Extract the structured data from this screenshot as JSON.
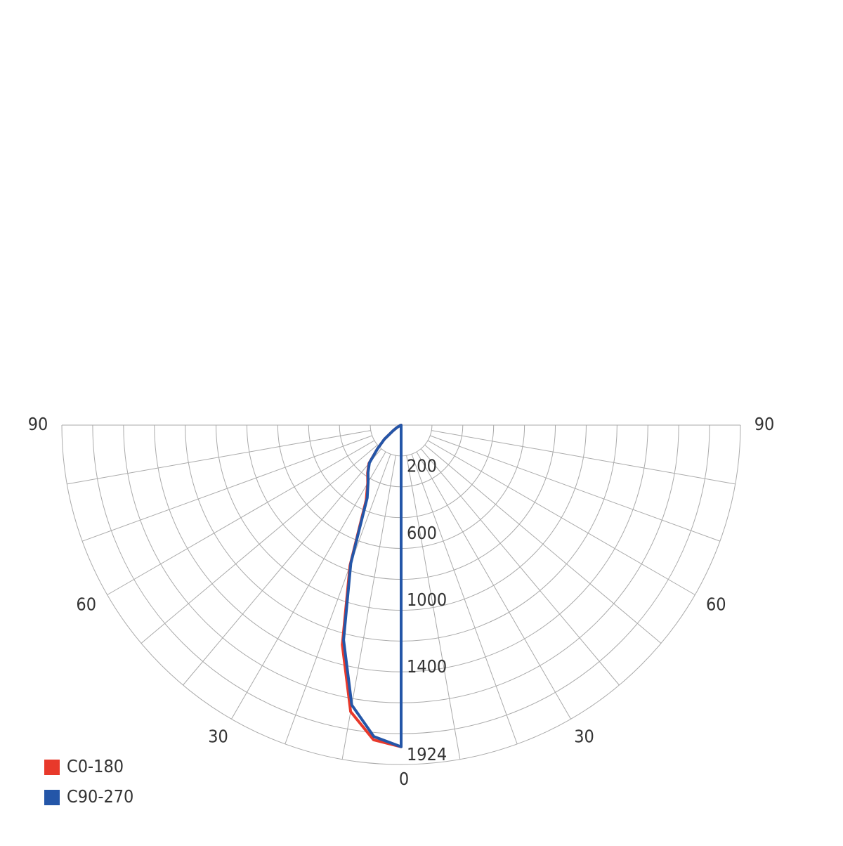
{
  "chart_data": {
    "type": "polar",
    "angles": [
      0,
      5,
      10,
      15,
      20,
      25,
      30,
      35,
      40,
      45,
      50,
      55,
      60,
      65,
      70,
      75,
      80,
      85,
      90
    ],
    "series": [
      {
        "name": "C0-180",
        "color": "#e8392b",
        "values": [
          1924,
          1890,
          1740,
          1360,
          895,
          495,
          400,
          350,
          300,
          200,
          130,
          60,
          30,
          10,
          5,
          0,
          0,
          0,
          0
        ]
      },
      {
        "name": "C90-270",
        "color": "#2456a8",
        "values": [
          1924,
          1870,
          1700,
          1330,
          880,
          480,
          395,
          345,
          295,
          200,
          130,
          60,
          30,
          10,
          5,
          0,
          0,
          0,
          0
        ]
      }
    ],
    "rlim": [
      0,
      2030
    ],
    "rticks": [
      200,
      600,
      1000,
      1400,
      1924
    ],
    "angle_ticks": [
      0,
      30,
      60,
      90
    ],
    "legend": "bottom-left"
  }
}
